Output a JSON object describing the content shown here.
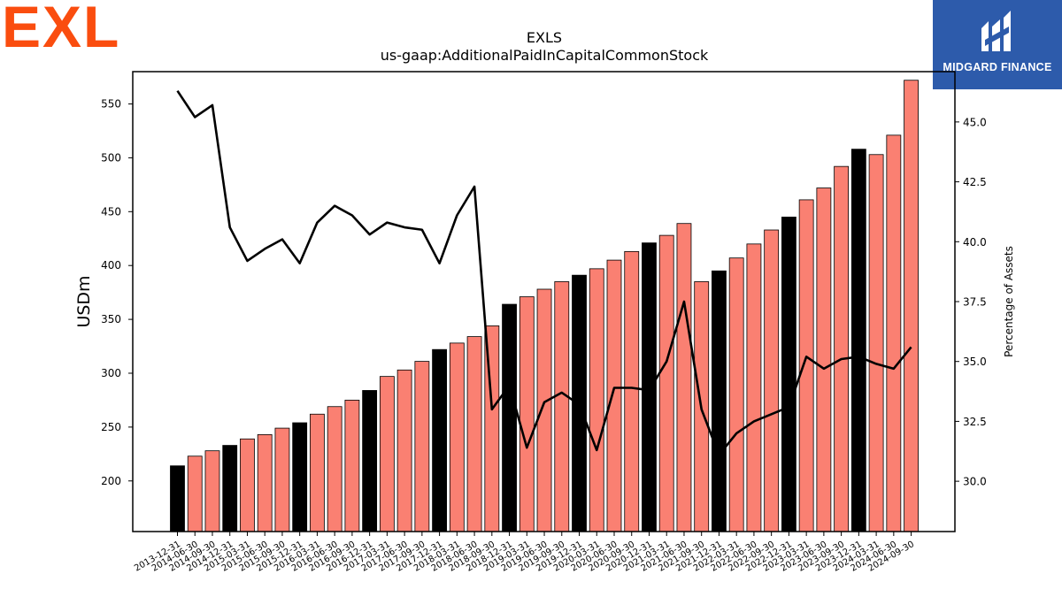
{
  "branding": {
    "company_logo_text": "EXL",
    "company_logo_color": "#fa4d0f",
    "publisher_logo_text": "MIDGARD FINANCE",
    "publisher_bg_color": "#2d5bab"
  },
  "chart_data": {
    "type": "bar",
    "title": "EXLS",
    "subtitle": "us-gaap:AdditionalPaidInCapitalCommonStock",
    "ylabel": "USDm",
    "y2label": "Percentage of Assets",
    "ylim": [
      153,
      580
    ],
    "y2lim": [
      27.9,
      47.1
    ],
    "yticks": [
      200,
      250,
      300,
      350,
      400,
      450,
      500,
      550
    ],
    "y2ticks": [
      "30.0",
      "32.5",
      "35.0",
      "37.5",
      "40.0",
      "42.5",
      "45.0"
    ],
    "bar_color": "#fa8072",
    "highlight_color": "#000000",
    "line_color": "#000000",
    "categories": [
      "2013-12-31",
      "2014-06-30",
      "2014-09-30",
      "2014-12-31",
      "2015-03-31",
      "2015-06-30",
      "2015-09-30",
      "2015-12-31",
      "2016-03-31",
      "2016-06-30",
      "2016-09-30",
      "2016-12-31",
      "2017-03-31",
      "2017-06-30",
      "2017-09-30",
      "2017-12-31",
      "2018-03-31",
      "2018-06-30",
      "2018-09-30",
      "2018-12-31",
      "2019-03-31",
      "2019-06-30",
      "2019-09-30",
      "2019-12-31",
      "2020-03-31",
      "2020-06-30",
      "2020-09-30",
      "2020-12-31",
      "2021-03-31",
      "2021-06-30",
      "2021-09-30",
      "2021-12-31",
      "2022-03-31",
      "2022-06-30",
      "2022-09-30",
      "2022-12-31",
      "2023-03-31",
      "2023-06-30",
      "2023-09-30",
      "2023-12-31",
      "2024-03-31",
      "2024-06-30",
      "2024-09-30"
    ],
    "series": [
      {
        "values": [
          214,
          223,
          228,
          233,
          239,
          243,
          249,
          254,
          262,
          269,
          275,
          284,
          297,
          303,
          311,
          322,
          328,
          334,
          344,
          364,
          371,
          378,
          385,
          391,
          397,
          405,
          413,
          421,
          428,
          439,
          385,
          395,
          407,
          420,
          433,
          445,
          461,
          472,
          492,
          508,
          503,
          521,
          572
        ],
        "highlighted": [
          true,
          false,
          false,
          true,
          false,
          false,
          false,
          true,
          false,
          false,
          false,
          true,
          false,
          false,
          false,
          true,
          false,
          false,
          false,
          true,
          false,
          false,
          false,
          true,
          false,
          false,
          false,
          true,
          false,
          false,
          false,
          true,
          false,
          false,
          false,
          true,
          false,
          false,
          false,
          true,
          false,
          false,
          false
        ]
      },
      {
        "values": [
          46.3,
          45.2,
          45.7,
          40.6,
          39.2,
          39.7,
          40.1,
          39.1,
          40.8,
          41.5,
          41.1,
          40.3,
          40.8,
          40.6,
          40.5,
          39.1,
          41.1,
          42.3,
          33.0,
          34.0,
          31.4,
          33.3,
          33.7,
          33.2,
          31.3,
          33.9,
          33.9,
          33.8,
          35.0,
          37.5,
          33.0,
          31.1,
          32.0,
          32.5,
          32.8,
          33.1,
          35.2,
          34.7,
          35.1,
          35.2,
          34.9,
          34.7,
          35.6
        ]
      }
    ]
  }
}
